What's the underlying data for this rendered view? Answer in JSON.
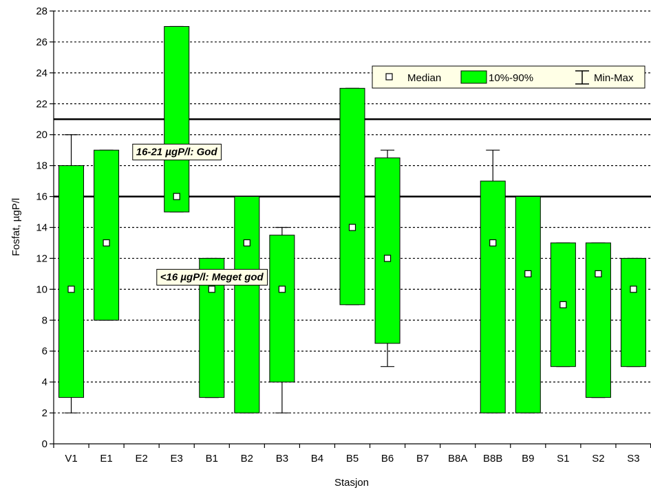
{
  "chart_data": {
    "type": "boxplot",
    "xlabel": "Stasjon",
    "ylabel": "Fosfat, µgP/l",
    "ylim": [
      0,
      28
    ],
    "ytick_step": 2,
    "grid": "horizontal dashed",
    "legend_position": "top-right",
    "legend": {
      "median": "Median",
      "range": "10%-90%",
      "minmax": "Min-Max"
    },
    "colors": {
      "box_fill": "#00ff00",
      "median_fill": "#ffffff",
      "legend_bg": "#ffffe6",
      "annotation_bg": "#ffffe6"
    },
    "categories": [
      "V1",
      "E1",
      "E2",
      "E3",
      "B1",
      "B2",
      "B3",
      "B4",
      "B5",
      "B6",
      "B7",
      "B8A",
      "B8B",
      "B9",
      "S1",
      "S2",
      "S3"
    ],
    "stations": [
      {
        "name": "V1",
        "min": 2,
        "p10": 3,
        "median": 10,
        "p90": 18,
        "max": 20
      },
      {
        "name": "E1",
        "min": 8,
        "p10": 8,
        "median": 13,
        "p90": 19,
        "max": 19
      },
      {
        "name": "E2",
        "min": null,
        "p10": null,
        "median": null,
        "p90": null,
        "max": null
      },
      {
        "name": "E3",
        "min": 15,
        "p10": 15,
        "median": 16,
        "p90": 27,
        "max": 27
      },
      {
        "name": "B1",
        "min": 3,
        "p10": 3,
        "median": 10,
        "p90": 12,
        "max": 12
      },
      {
        "name": "B2",
        "min": 2,
        "p10": 2,
        "median": 13,
        "p90": 16,
        "max": 16
      },
      {
        "name": "B3",
        "min": 2,
        "p10": 4,
        "median": 10,
        "p90": 13.5,
        "max": 14
      },
      {
        "name": "B4",
        "min": null,
        "p10": null,
        "median": null,
        "p90": null,
        "max": null
      },
      {
        "name": "B5",
        "min": 9,
        "p10": 9,
        "median": 14,
        "p90": 23,
        "max": 23
      },
      {
        "name": "B6",
        "min": 5,
        "p10": 6.5,
        "median": 12,
        "p90": 18.5,
        "max": 19
      },
      {
        "name": "B7",
        "min": null,
        "p10": null,
        "median": null,
        "p90": null,
        "max": null
      },
      {
        "name": "B8A",
        "min": null,
        "p10": null,
        "median": null,
        "p90": null,
        "max": null
      },
      {
        "name": "B8B",
        "min": 2,
        "p10": 2,
        "median": 13,
        "p90": 17,
        "max": 19
      },
      {
        "name": "B9",
        "min": 2,
        "p10": 2,
        "median": 11,
        "p90": 16,
        "max": 16
      },
      {
        "name": "S1",
        "min": 5,
        "p10": 5,
        "median": 9,
        "p90": 13,
        "max": 13
      },
      {
        "name": "S2",
        "min": 3,
        "p10": 3,
        "median": 11,
        "p90": 13,
        "max": 13
      },
      {
        "name": "S3",
        "min": 5,
        "p10": 5,
        "median": 10,
        "p90": 12,
        "max": 12
      }
    ],
    "reference_lines": [
      16,
      21
    ],
    "annotations": [
      {
        "text": "16-21 µgP/l: God",
        "y": 18.9,
        "x_station": "E3"
      },
      {
        "text": "<16 µgP/l: Meget god",
        "y": 10.8,
        "x_station": "B1"
      }
    ]
  }
}
